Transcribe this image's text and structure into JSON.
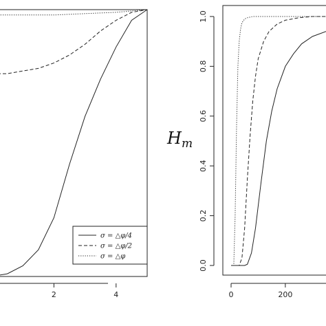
{
  "chart_data": [
    {
      "type": "line",
      "xlim": [
        0,
        5
      ],
      "ylim": [
        0,
        1
      ],
      "x_ticks": [
        "2",
        "4"
      ],
      "legend_position": "bottom-right",
      "series": [
        {
          "name": "σ = △φ/4",
          "dash": "solid",
          "x": [
            0,
            0.5,
            1.0,
            1.5,
            2.0,
            2.5,
            3.0,
            3.5,
            4.0,
            4.5,
            5.0
          ],
          "y": [
            0.0,
            0.01,
            0.04,
            0.1,
            0.22,
            0.42,
            0.6,
            0.74,
            0.86,
            0.96,
            1.0
          ]
        },
        {
          "name": "σ = △φ/2",
          "dash": "dashed",
          "x": [
            0,
            0.5,
            1.0,
            1.5,
            2.0,
            2.5,
            3.0,
            3.5,
            4.0,
            4.5,
            5.0
          ],
          "y": [
            0.76,
            0.76,
            0.77,
            0.78,
            0.8,
            0.83,
            0.87,
            0.92,
            0.96,
            0.99,
            1.0
          ]
        },
        {
          "name": "σ = △φ",
          "dash": "dotted",
          "x": [
            0,
            1.0,
            2.0,
            3.0,
            4.0,
            5.0
          ],
          "y": [
            0.98,
            0.98,
            0.98,
            0.985,
            0.99,
            1.0
          ]
        }
      ]
    },
    {
      "type": "line",
      "ylabel": "H_m",
      "xlim": [
        0,
        350
      ],
      "ylim": [
        0,
        1
      ],
      "x_ticks": [
        "0",
        "200"
      ],
      "y_ticks": [
        "0.0",
        "0.2",
        "0.4",
        "0.6",
        "0.8",
        "1.0"
      ],
      "series": [
        {
          "dash": "dotted",
          "x": [
            0,
            10,
            15,
            20,
            25,
            30,
            35,
            40,
            50,
            60,
            80,
            120,
            200,
            350
          ],
          "y": [
            0.0,
            0.0,
            0.2,
            0.55,
            0.8,
            0.9,
            0.95,
            0.975,
            0.99,
            0.995,
            1.0,
            1.0,
            1.0,
            1.0
          ]
        },
        {
          "dash": "dashed",
          "x": [
            0,
            30,
            40,
            50,
            60,
            70,
            80,
            90,
            100,
            120,
            140,
            170,
            200,
            250,
            300,
            350
          ],
          "y": [
            0.0,
            0.0,
            0.03,
            0.15,
            0.35,
            0.52,
            0.66,
            0.76,
            0.83,
            0.9,
            0.94,
            0.97,
            0.985,
            0.995,
            1.0,
            1.0
          ]
        },
        {
          "dash": "solid",
          "x": [
            0,
            50,
            60,
            75,
            90,
            110,
            130,
            150,
            170,
            200,
            230,
            260,
            300,
            350
          ],
          "y": [
            0.0,
            0.0,
            0.005,
            0.05,
            0.15,
            0.33,
            0.5,
            0.62,
            0.71,
            0.8,
            0.85,
            0.89,
            0.92,
            0.94
          ]
        }
      ]
    }
  ]
}
